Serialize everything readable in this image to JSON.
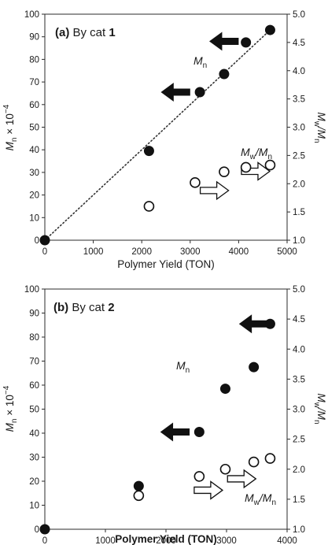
{
  "chart_data": [
    {
      "type": "scatter",
      "title": "(a) By cat 1",
      "title_parts": {
        "prefix": "(a)",
        "text": " By cat ",
        "num": "1"
      },
      "xlabel": "Polymer Yield (TON)",
      "ylabel_left": "Mn × 10−4",
      "ylabel_right": "Mw/Mn",
      "xlim": [
        0,
        5000
      ],
      "ylim_left": [
        0,
        100
      ],
      "ylim_right": [
        1.0,
        5.0
      ],
      "x_ticks": [
        "0",
        "1000",
        "2000",
        "3000",
        "4000",
        "5000"
      ],
      "y_left_ticks": [
        "0",
        "10",
        "20",
        "30",
        "40",
        "50",
        "60",
        "70",
        "80",
        "90",
        "100"
      ],
      "y_right_ticks": [
        "1.0",
        "1.5",
        "2.0",
        "2.5",
        "3.0",
        "3.5",
        "4.0",
        "4.5",
        "5.0"
      ],
      "series": [
        {
          "name": "Mn",
          "axis": "left",
          "marker": "filled",
          "x": [
            0,
            2150,
            3200,
            3700,
            4150,
            4650
          ],
          "y": [
            0,
            39.5,
            65.5,
            73.5,
            87.5,
            93
          ]
        },
        {
          "name": "Mw/Mn",
          "axis": "right",
          "marker": "open",
          "x": [
            2150,
            3100,
            3700,
            4150,
            4650
          ],
          "y": [
            1.6,
            2.02,
            2.21,
            2.29,
            2.33
          ]
        }
      ],
      "trendline": {
        "style": "dotted",
        "from": [
          0,
          0
        ],
        "to": [
          4650,
          93
        ]
      },
      "annotations": {
        "mn_label": {
          "main": "M",
          "sub": "n"
        },
        "mwmn_label": {
          "m1": "M",
          "s1": "w",
          "slash": "/",
          "m2": "M",
          "s2": "n"
        }
      },
      "arrows": [
        {
          "kind": "filled",
          "direction": "left",
          "at": [
            3700,
            88
          ]
        },
        {
          "kind": "filled",
          "direction": "left",
          "at": [
            2700,
            65.5
          ]
        },
        {
          "kind": "open",
          "direction": "right",
          "at": [
            3500,
            1.88
          ]
        },
        {
          "kind": "open",
          "direction": "right",
          "at": [
            4350,
            2.22
          ]
        }
      ]
    },
    {
      "type": "scatter",
      "title": "(b) By cat 2",
      "title_parts": {
        "prefix": "(b)",
        "text": " By cat ",
        "num": "2"
      },
      "xlabel": "Polymer Yield (TON)",
      "ylabel_left": "Mn × 10−4",
      "ylabel_right": "Mw/Mn",
      "xlim": [
        0,
        4000
      ],
      "ylim_left": [
        0,
        100
      ],
      "ylim_right": [
        1.0,
        5.0
      ],
      "x_ticks": [
        "0",
        "1000",
        "2000",
        "3000",
        "4000"
      ],
      "y_left_ticks": [
        "0",
        "10",
        "20",
        "30",
        "40",
        "50",
        "60",
        "70",
        "80",
        "90",
        "100"
      ],
      "y_right_ticks": [
        "1.0",
        "1.5",
        "2.0",
        "2.5",
        "3.0",
        "3.5",
        "4.0",
        "4.5",
        "5.0"
      ],
      "series": [
        {
          "name": "Mn",
          "axis": "left",
          "marker": "filled",
          "x": [
            0,
            1550,
            2550,
            2980,
            3450,
            3720
          ],
          "y": [
            0,
            18,
            40.5,
            58.5,
            67.5,
            85.5
          ]
        },
        {
          "name": "Mw/Mn",
          "axis": "right",
          "marker": "open",
          "x": [
            1550,
            2550,
            2980,
            3450,
            3720
          ],
          "y": [
            1.56,
            1.88,
            2.0,
            2.12,
            2.18
          ]
        }
      ],
      "annotations": {
        "mn_label": {
          "main": "M",
          "sub": "n"
        },
        "mwmn_label": {
          "m1": "M",
          "s1": "w",
          "slash": "/",
          "m2": "M",
          "s2": "n"
        }
      },
      "arrows": [
        {
          "kind": "filled",
          "direction": "left",
          "at": [
            3450,
            85.5
          ]
        },
        {
          "kind": "filled",
          "direction": "left",
          "at": [
            2150,
            40.5
          ]
        },
        {
          "kind": "open",
          "direction": "right",
          "at": [
            2700,
            1.65
          ]
        },
        {
          "kind": "open",
          "direction": "right",
          "at": [
            3250,
            1.84
          ]
        }
      ]
    }
  ]
}
